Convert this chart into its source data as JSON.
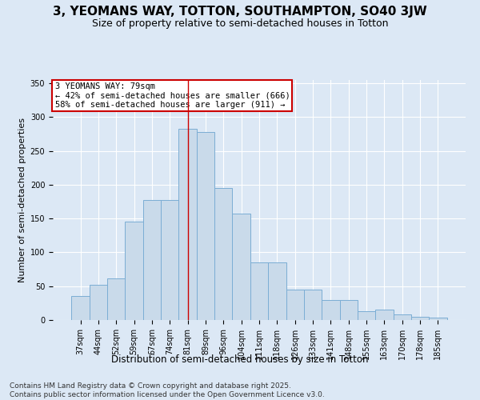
{
  "title": "3, YEOMANS WAY, TOTTON, SOUTHAMPTON, SO40 3JW",
  "subtitle": "Size of property relative to semi-detached houses in Totton",
  "xlabel": "Distribution of semi-detached houses by size in Totton",
  "ylabel": "Number of semi-detached properties",
  "footer": "Contains HM Land Registry data © Crown copyright and database right 2025.\nContains public sector information licensed under the Open Government Licence v3.0.",
  "categories": [
    "37sqm",
    "44sqm",
    "52sqm",
    "59sqm",
    "67sqm",
    "74sqm",
    "81sqm",
    "89sqm",
    "96sqm",
    "104sqm",
    "111sqm",
    "118sqm",
    "126sqm",
    "133sqm",
    "141sqm",
    "148sqm",
    "155sqm",
    "163sqm",
    "170sqm",
    "178sqm",
    "185sqm"
  ],
  "values": [
    35,
    52,
    62,
    145,
    178,
    178,
    283,
    278,
    195,
    157,
    85,
    85,
    45,
    45,
    30,
    30,
    13,
    15,
    8,
    5,
    3
  ],
  "bar_color": "#c9daea",
  "bar_edge_color": "#7badd4",
  "vline_x_index": 6,
  "vline_color": "#cc0000",
  "annotation_text": "3 YEOMANS WAY: 79sqm\n← 42% of semi-detached houses are smaller (666)\n58% of semi-detached houses are larger (911) →",
  "annotation_box_color": "#ffffff",
  "annotation_box_edge_color": "#cc0000",
  "ylim": [
    0,
    355
  ],
  "yticks": [
    0,
    50,
    100,
    150,
    200,
    250,
    300,
    350
  ],
  "background_color": "#dce8f5",
  "plot_background_color": "#dce8f5",
  "title_fontsize": 11,
  "subtitle_fontsize": 9,
  "tick_fontsize": 7,
  "ylabel_fontsize": 8,
  "xlabel_fontsize": 8.5,
  "footer_fontsize": 6.5,
  "annotation_fontsize": 7.5
}
